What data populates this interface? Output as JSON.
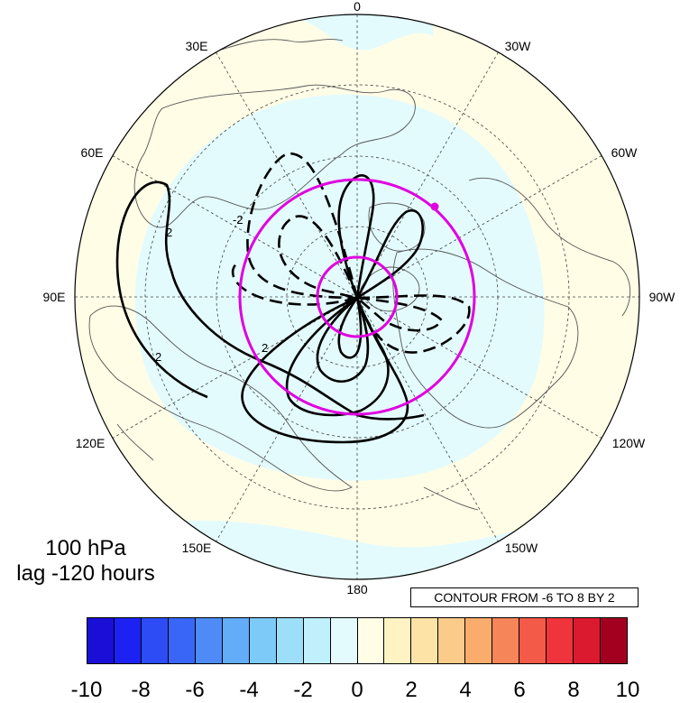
{
  "title": {
    "level": "100 hPa",
    "lag": "lag -120 hours"
  },
  "contour_info": "CONTOUR FROM -6 TO 8 BY 2",
  "longitude_labels": {
    "lon_0": "0",
    "lon_30w": "30W",
    "lon_60w": "60W",
    "lon_90w": "90W",
    "lon_120w": "120W",
    "lon_150w": "150W",
    "lon_180": "180",
    "lon_150e": "150E",
    "lon_120e": "120E",
    "lon_90e": "90E",
    "lon_60e": "60E",
    "lon_30e": "30E"
  },
  "colorbar": {
    "colors": [
      "#1a0fd6",
      "#1c22f2",
      "#2d4cf5",
      "#3a66f7",
      "#4e8bf7",
      "#62acf8",
      "#7dcaf9",
      "#9ddff9",
      "#bff0fb",
      "#e3fbfd",
      "#fffde6",
      "#fff3c4",
      "#fde4a6",
      "#fbcc89",
      "#f9ac6c",
      "#f6855a",
      "#f35a48",
      "#f0343b",
      "#dc1a2f",
      "#a3001f"
    ],
    "tick_labels": [
      "-10",
      "-8",
      "-6",
      "-4",
      "-2",
      "0",
      "2",
      "4",
      "6",
      "8",
      "10"
    ]
  },
  "colors": {
    "highlight_circle": "#e000e0",
    "contour": "#000000",
    "land_outline": "#555555"
  }
}
